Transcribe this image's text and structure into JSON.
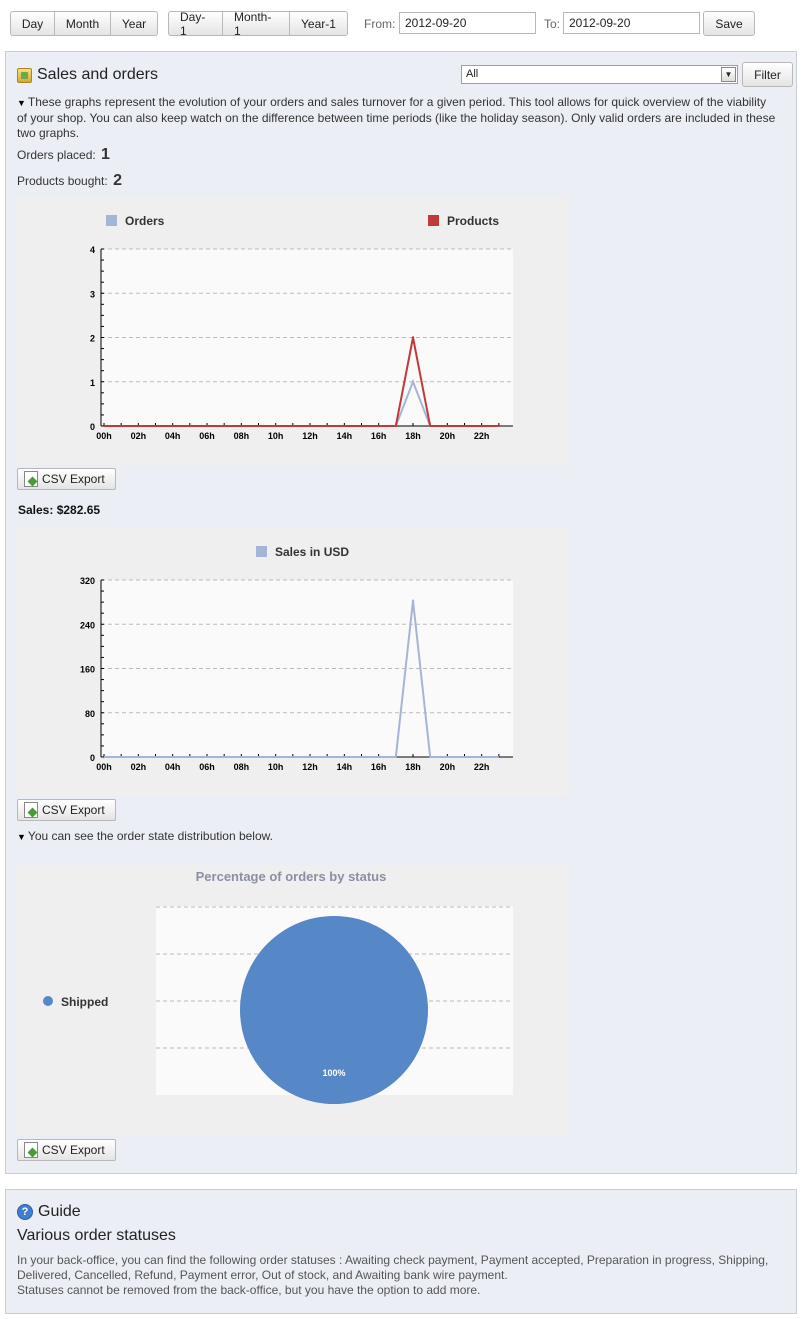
{
  "toolbar": {
    "period_buttons": [
      "Day",
      "Month",
      "Year"
    ],
    "previous_buttons": [
      "Day-1",
      "Month-1",
      "Year-1"
    ],
    "from_label": "From:",
    "from_value": "2012-09-20",
    "to_label": "To:",
    "to_value": "2012-09-20",
    "save_label": "Save"
  },
  "sales_panel": {
    "title": "Sales and orders",
    "icon": "chart-icon",
    "filter_value": "All",
    "filter_label": "Filter",
    "description": "These graphs represent the evolution of your orders and sales turnover for a given period. This tool allows for quick overview of the viability of your shop. You can also keep watch on the difference between time periods (like the holiday season). Only valid orders are included in these two graphs.",
    "orders_placed_label": "Orders placed:",
    "orders_placed_value": "1",
    "products_bought_label": "Products bought:",
    "products_bought_value": "2",
    "csv_label": "CSV Export",
    "sales_label": "Sales: $282.65",
    "state_note": "You can see the order state distribution below."
  },
  "chart_data": [
    {
      "type": "line",
      "x": [
        "00h",
        "01h",
        "02h",
        "03h",
        "04h",
        "05h",
        "06h",
        "07h",
        "08h",
        "09h",
        "10h",
        "11h",
        "12h",
        "13h",
        "14h",
        "15h",
        "16h",
        "17h",
        "18h",
        "19h",
        "20h",
        "21h",
        "22h",
        "23h"
      ],
      "tick_labels": [
        "00h",
        "02h",
        "04h",
        "06h",
        "08h",
        "10h",
        "12h",
        "14h",
        "16h",
        "18h",
        "20h",
        "22h"
      ],
      "series": [
        {
          "name": "Orders",
          "color": "#a5b5d8",
          "values": [
            0,
            0,
            0,
            0,
            0,
            0,
            0,
            0,
            0,
            0,
            0,
            0,
            0,
            0,
            0,
            0,
            0,
            0,
            1,
            0,
            0,
            0,
            0,
            0
          ]
        },
        {
          "name": "Products",
          "color": "#c03a3a",
          "values": [
            0,
            0,
            0,
            0,
            0,
            0,
            0,
            0,
            0,
            0,
            0,
            0,
            0,
            0,
            0,
            0,
            0,
            0,
            2,
            0,
            0,
            0,
            0,
            0
          ]
        }
      ],
      "ylim": [
        0,
        4
      ],
      "yticks": [
        "0",
        "1",
        "2",
        "3",
        "4"
      ],
      "legend": "top",
      "grid": true
    },
    {
      "type": "line",
      "x": [
        "00h",
        "01h",
        "02h",
        "03h",
        "04h",
        "05h",
        "06h",
        "07h",
        "08h",
        "09h",
        "10h",
        "11h",
        "12h",
        "13h",
        "14h",
        "15h",
        "16h",
        "17h",
        "18h",
        "19h",
        "20h",
        "21h",
        "22h",
        "23h"
      ],
      "tick_labels": [
        "00h",
        "02h",
        "04h",
        "06h",
        "08h",
        "10h",
        "12h",
        "14h",
        "16h",
        "18h",
        "20h",
        "22h"
      ],
      "series": [
        {
          "name": "Sales in USD",
          "color": "#a5b5d8",
          "values": [
            0,
            0,
            0,
            0,
            0,
            0,
            0,
            0,
            0,
            0,
            0,
            0,
            0,
            0,
            0,
            0,
            0,
            0,
            282.65,
            0,
            0,
            0,
            0,
            0
          ]
        }
      ],
      "ylim": [
        0,
        320
      ],
      "yticks": [
        "0",
        "80",
        "160",
        "240",
        "320"
      ],
      "legend": "top",
      "grid": true
    },
    {
      "type": "pie",
      "title": "Percentage of orders by status",
      "categories": [
        "Shipped"
      ],
      "values": [
        100
      ],
      "value_labels": [
        "100%"
      ],
      "colors": [
        "#5688c8"
      ],
      "legend": "left"
    }
  ],
  "guide": {
    "title": "Guide",
    "subtitle": "Various order statuses",
    "text_1": "In your back-office, you can find the following order statuses : Awaiting check payment, Payment accepted, Preparation in progress, Shipping, Delivered, Cancelled, Refund, Payment error, Out of stock, and Awaiting bank wire payment.",
    "text_2": "Statuses cannot be removed from the back-office, but you have the option to add more."
  }
}
